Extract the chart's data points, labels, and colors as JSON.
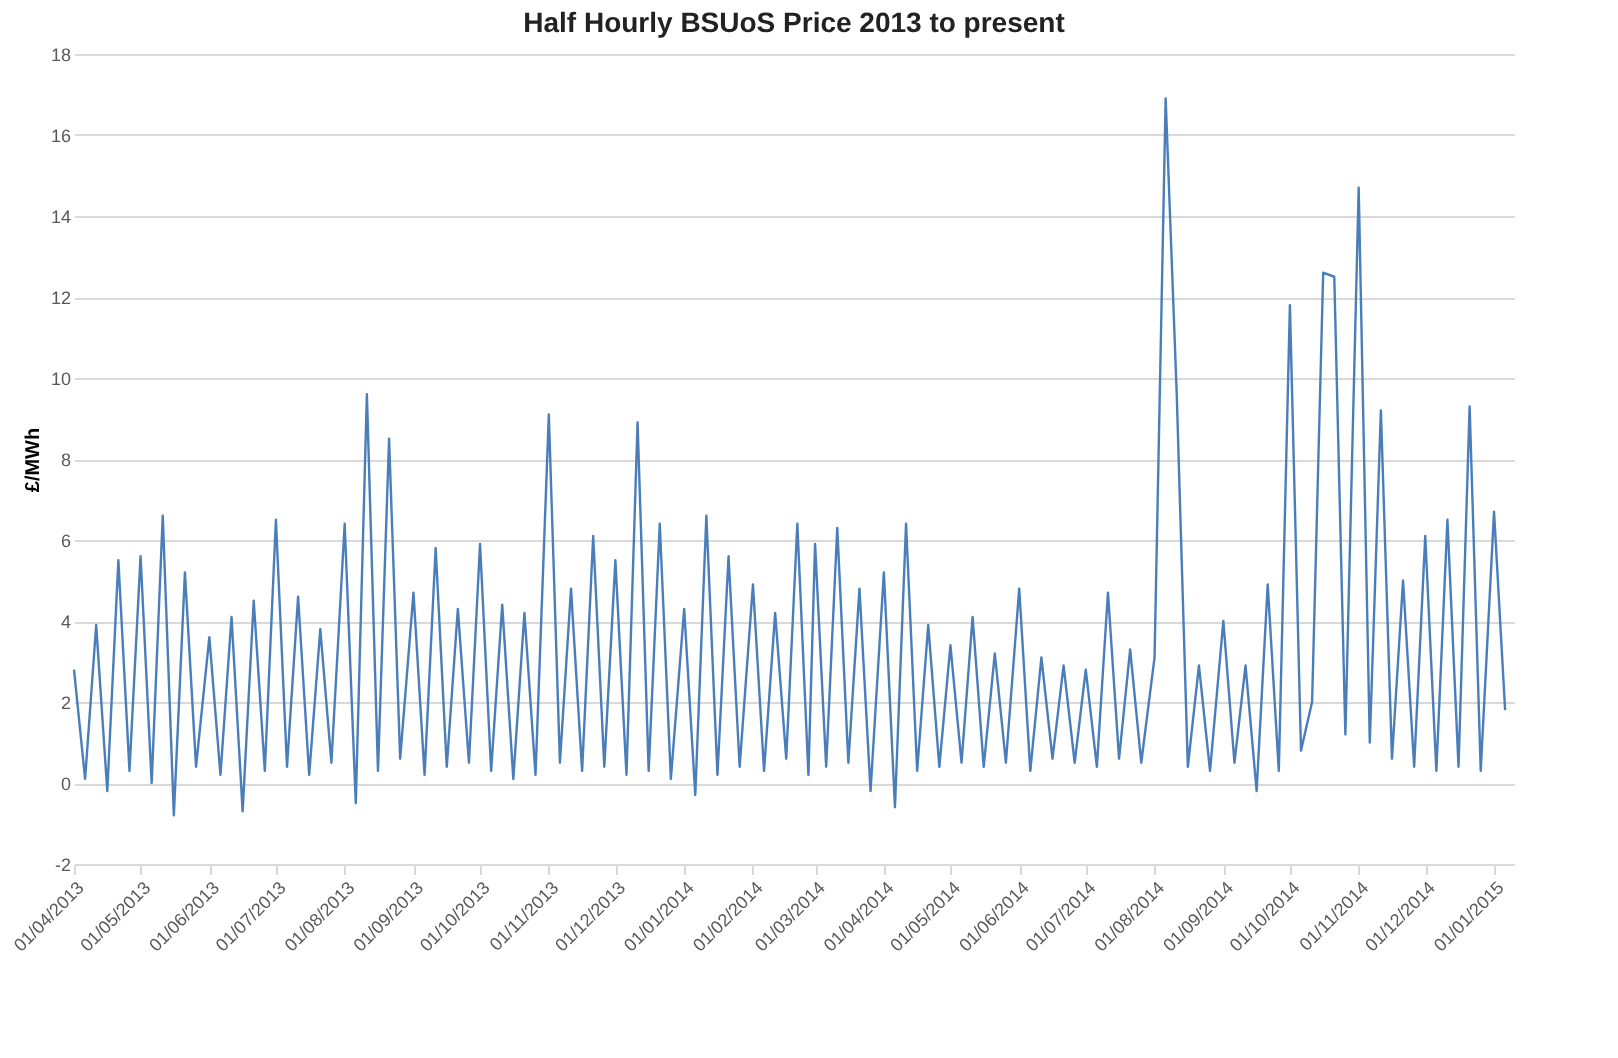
{
  "chart_data": {
    "type": "line",
    "title": "Half Hourly BSUoS Price 2013 to present",
    "ylabel": "£/MWh",
    "x": [
      "2013-04-01",
      "2013-04-06",
      "2013-04-11",
      "2013-04-16",
      "2013-04-21",
      "2013-04-26",
      "2013-05-01",
      "2013-05-06",
      "2013-05-11",
      "2013-05-16",
      "2013-05-21",
      "2013-05-26",
      "2013-06-01",
      "2013-06-06",
      "2013-06-11",
      "2013-06-16",
      "2013-06-21",
      "2013-06-26",
      "2013-07-01",
      "2013-07-06",
      "2013-07-11",
      "2013-07-16",
      "2013-07-21",
      "2013-07-26",
      "2013-08-01",
      "2013-08-06",
      "2013-08-11",
      "2013-08-16",
      "2013-08-21",
      "2013-08-26",
      "2013-09-01",
      "2013-09-06",
      "2013-09-11",
      "2013-09-16",
      "2013-09-21",
      "2013-09-26",
      "2013-10-01",
      "2013-10-06",
      "2013-10-11",
      "2013-10-16",
      "2013-10-21",
      "2013-10-26",
      "2013-11-01",
      "2013-11-06",
      "2013-11-11",
      "2013-11-16",
      "2013-11-21",
      "2013-11-26",
      "2013-12-01",
      "2013-12-06",
      "2013-12-11",
      "2013-12-16",
      "2013-12-21",
      "2013-12-26",
      "2014-01-01",
      "2014-01-06",
      "2014-01-11",
      "2014-01-16",
      "2014-01-21",
      "2014-01-26",
      "2014-02-01",
      "2014-02-06",
      "2014-02-11",
      "2014-02-16",
      "2014-02-21",
      "2014-02-26",
      "2014-03-01",
      "2014-03-06",
      "2014-03-11",
      "2014-03-16",
      "2014-03-21",
      "2014-03-26",
      "2014-04-01",
      "2014-04-06",
      "2014-04-11",
      "2014-04-16",
      "2014-04-21",
      "2014-04-26",
      "2014-05-01",
      "2014-05-06",
      "2014-05-11",
      "2014-05-16",
      "2014-05-21",
      "2014-05-26",
      "2014-06-01",
      "2014-06-06",
      "2014-06-11",
      "2014-06-16",
      "2014-06-21",
      "2014-06-26",
      "2014-07-01",
      "2014-07-06",
      "2014-07-11",
      "2014-07-16",
      "2014-07-21",
      "2014-07-26",
      "2014-08-01",
      "2014-08-06",
      "2014-08-11",
      "2014-08-16",
      "2014-08-21",
      "2014-08-26",
      "2014-09-01",
      "2014-09-06",
      "2014-09-11",
      "2014-09-16",
      "2014-09-21",
      "2014-09-26",
      "2014-10-01",
      "2014-10-06",
      "2014-10-11",
      "2014-10-16",
      "2014-10-21",
      "2014-10-26",
      "2014-11-01",
      "2014-11-06",
      "2014-11-11",
      "2014-11-16",
      "2014-11-21",
      "2014-11-26",
      "2014-12-01",
      "2014-12-06",
      "2014-12-11",
      "2014-12-16",
      "2014-12-21",
      "2014-12-26",
      "2015-01-01",
      "2015-01-06"
    ],
    "series": [
      {
        "color": "#4a7ebb",
        "values": [
          2.8,
          0.1,
          3.9,
          -0.2,
          5.5,
          0.3,
          5.6,
          0.0,
          6.6,
          -0.8,
          5.2,
          0.4,
          3.6,
          0.2,
          4.1,
          -0.7,
          4.5,
          0.3,
          6.5,
          0.4,
          4.6,
          0.2,
          3.8,
          0.5,
          6.4,
          -0.5,
          9.6,
          0.3,
          8.5,
          0.6,
          4.7,
          0.2,
          5.8,
          0.4,
          4.3,
          0.5,
          5.9,
          0.3,
          4.4,
          0.1,
          4.2,
          0.2,
          9.1,
          0.5,
          4.8,
          0.3,
          6.1,
          0.4,
          5.5,
          0.2,
          8.9,
          0.3,
          6.4,
          0.1,
          4.3,
          -0.3,
          6.6,
          0.2,
          5.6,
          0.4,
          4.9,
          0.3,
          4.2,
          0.6,
          6.4,
          0.2,
          5.9,
          0.4,
          6.3,
          0.5,
          4.8,
          -0.2,
          5.2,
          -0.6,
          6.4,
          0.3,
          3.9,
          0.4,
          3.4,
          0.5,
          4.1,
          0.4,
          3.2,
          0.5,
          4.8,
          0.3,
          3.1,
          0.6,
          2.9,
          0.5,
          2.8,
          0.4,
          4.7,
          0.6,
          3.3,
          0.5,
          3.1,
          16.9,
          9.6,
          0.4,
          2.9,
          0.3,
          4.0,
          0.5,
          2.9,
          -0.2,
          4.9,
          0.3,
          11.8,
          0.8,
          2.0,
          12.6,
          12.5,
          1.2,
          14.7,
          1.0,
          9.2,
          0.6,
          5.0,
          0.4,
          6.1,
          0.3,
          6.5,
          0.4,
          9.3,
          0.3,
          6.7,
          1.8
        ]
      }
    ],
    "xlim": [
      "2013-04-01",
      "2015-01-10"
    ],
    "xticks": [
      {
        "value": "2013-04-01",
        "label": "01/04/2013"
      },
      {
        "value": "2013-05-01",
        "label": "01/05/2013"
      },
      {
        "value": "2013-06-01",
        "label": "01/06/2013"
      },
      {
        "value": "2013-07-01",
        "label": "01/07/2013"
      },
      {
        "value": "2013-08-01",
        "label": "01/08/2013"
      },
      {
        "value": "2013-09-01",
        "label": "01/09/2013"
      },
      {
        "value": "2013-10-01",
        "label": "01/10/2013"
      },
      {
        "value": "2013-11-01",
        "label": "01/11/2013"
      },
      {
        "value": "2013-12-01",
        "label": "01/12/2013"
      },
      {
        "value": "2014-01-01",
        "label": "01/01/2014"
      },
      {
        "value": "2014-02-01",
        "label": "01/02/2014"
      },
      {
        "value": "2014-03-01",
        "label": "01/03/2014"
      },
      {
        "value": "2014-04-01",
        "label": "01/04/2014"
      },
      {
        "value": "2014-05-01",
        "label": "01/05/2014"
      },
      {
        "value": "2014-06-01",
        "label": "01/06/2014"
      },
      {
        "value": "2014-07-01",
        "label": "01/07/2014"
      },
      {
        "value": "2014-08-01",
        "label": "01/08/2014"
      },
      {
        "value": "2014-09-01",
        "label": "01/09/2014"
      },
      {
        "value": "2014-10-01",
        "label": "01/10/2014"
      },
      {
        "value": "2014-11-01",
        "label": "01/11/2014"
      },
      {
        "value": "2014-12-01",
        "label": "01/12/2014"
      },
      {
        "value": "2015-01-01",
        "label": "01/01/2015"
      }
    ],
    "ylim": [
      -2,
      18
    ],
    "yticks": [
      -2,
      0,
      2,
      4,
      6,
      8,
      10,
      12,
      14,
      16,
      18
    ],
    "grid": "y",
    "marker": "none",
    "line_style": "solid"
  }
}
